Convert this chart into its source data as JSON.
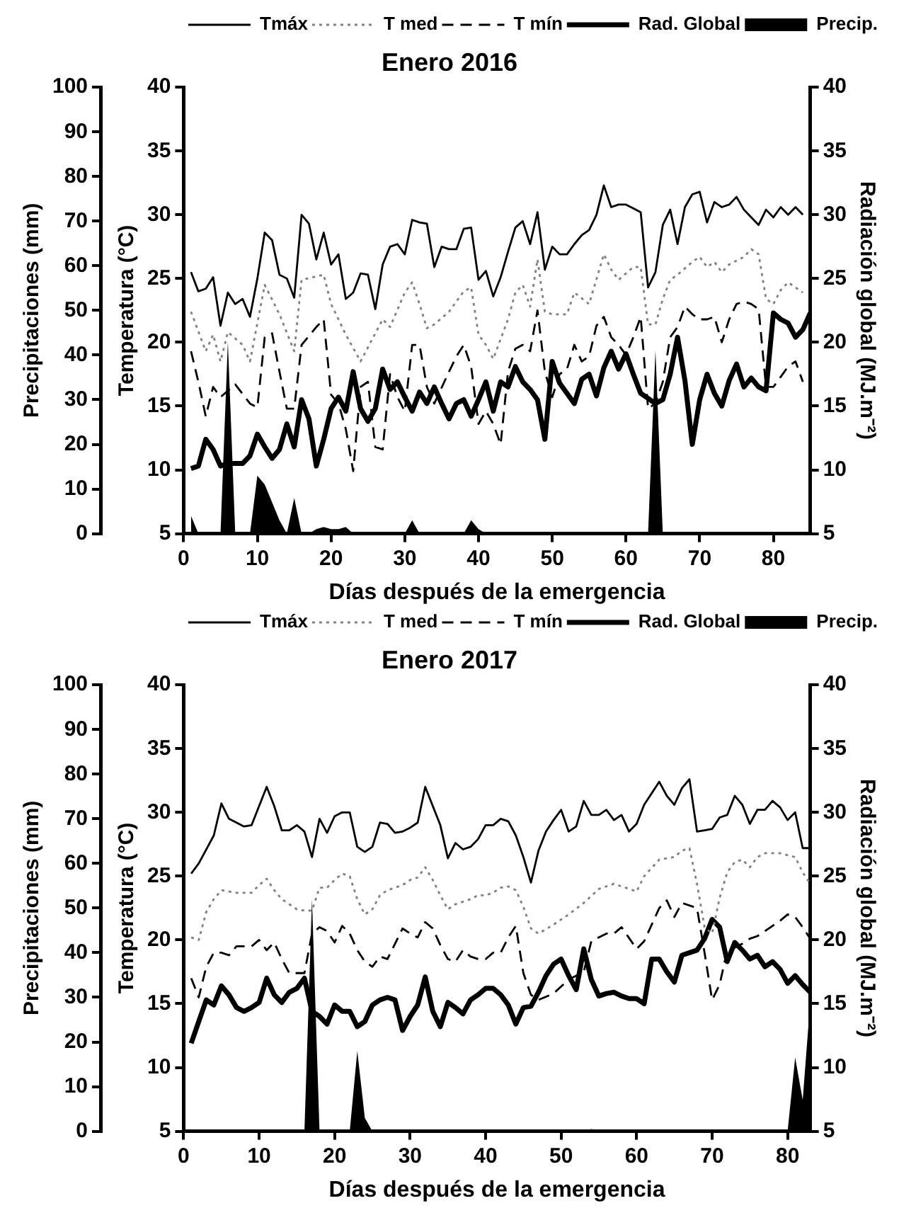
{
  "chart_data": [
    {
      "type": "line",
      "title": "Enero 2016",
      "xlabel": "Días después de la emergencia",
      "ylabel": "Precipitaciones (mm)",
      "y3label": "Temperatura (°C)",
      "y2label": "Radiación global (MJ.m⁻²)",
      "xlim": [
        0,
        85
      ],
      "xticks": [
        0,
        10,
        20,
        30,
        40,
        50,
        60,
        70,
        80
      ],
      "ylim": [
        0,
        100
      ],
      "yticks": [
        0,
        10,
        20,
        30,
        40,
        50,
        60,
        70,
        80,
        90,
        100
      ],
      "y3lim": [
        5,
        40
      ],
      "y3ticks": [
        5,
        10,
        15,
        20,
        25,
        30,
        35,
        40
      ],
      "y2lim": [
        5,
        40
      ],
      "y2ticks": [
        5,
        10,
        15,
        20,
        25,
        30,
        35,
        40
      ],
      "grid": false,
      "legend": "top right",
      "marker": "none",
      "series": [
        {
          "name": "Tmáx",
          "color": "#000000",
          "line_style": "solid",
          "axis": "y3",
          "x": [
            1,
            2,
            3,
            4,
            5,
            6,
            7,
            8,
            9,
            10,
            11,
            12,
            13,
            14,
            15,
            16,
            17,
            18,
            19,
            20,
            21,
            22,
            23,
            24,
            25,
            26,
            27,
            28,
            29,
            30,
            31,
            32,
            33,
            34,
            35,
            36,
            37,
            38,
            39,
            40,
            41,
            42,
            43,
            44,
            45,
            46,
            47,
            48,
            49,
            50,
            51,
            52,
            53,
            54,
            55,
            56,
            57,
            58,
            59,
            60,
            61,
            62,
            63,
            64,
            65,
            66,
            67,
            68,
            69,
            70,
            71,
            72,
            73,
            74,
            75,
            76,
            77,
            78,
            79,
            80,
            81,
            82,
            83,
            84
          ],
          "values": [
            25.5,
            24,
            24.2,
            25.1,
            21.3,
            23.9,
            23,
            23.4,
            22,
            25,
            28.6,
            28,
            25.3,
            25,
            23.5,
            30,
            29.3,
            26.5,
            28.6,
            26.1,
            26.9,
            23.4,
            23.9,
            25.4,
            25.3,
            22.6,
            26.1,
            27.5,
            27.7,
            26.9,
            29.6,
            29.4,
            29.3,
            25.9,
            27.5,
            27.3,
            27.3,
            28.9,
            29,
            24.9,
            25.6,
            23.6,
            25.1,
            27.1,
            29,
            29.5,
            27.7,
            30.2,
            25.7,
            27.5,
            26.9,
            26.9,
            27.7,
            28.4,
            28.8,
            30,
            32.3,
            30.6,
            30.8,
            30.8,
            30.5,
            30.2,
            24.3,
            25.5,
            29.2,
            30.4,
            27.7,
            30.6,
            31.6,
            31.8,
            29.4,
            31,
            30.6,
            30.8,
            31.4,
            30.4,
            29.8,
            29.2,
            30.4,
            29.8,
            30.6,
            30,
            30.6,
            30
          ]
        },
        {
          "name": "T med",
          "color": "#808080",
          "line_style": "dotted",
          "axis": "y3",
          "x": [
            1,
            3,
            4,
            5,
            6,
            8,
            9,
            11,
            13,
            15,
            16,
            19,
            20,
            22,
            24,
            26,
            27,
            28,
            30,
            31,
            32,
            33,
            34,
            36,
            38,
            39,
            40,
            41,
            42,
            44,
            45,
            46,
            47,
            48,
            49,
            50,
            52,
            53,
            55,
            57,
            58,
            59,
            61,
            62,
            63,
            64,
            65,
            66,
            67,
            69,
            70,
            71,
            72,
            73,
            74,
            76,
            77,
            78,
            79,
            80,
            81,
            82,
            83,
            84
          ],
          "values": [
            22.4,
            19.3,
            20.6,
            18.5,
            20.8,
            19.8,
            18.5,
            24.5,
            22.2,
            19.3,
            24.9,
            25.3,
            23,
            20.6,
            18.5,
            20.7,
            21.8,
            21.2,
            23.9,
            24.7,
            23,
            21.1,
            21.4,
            22.4,
            24,
            24.3,
            20.6,
            19.8,
            18.7,
            21.8,
            23.9,
            24.5,
            22.8,
            26.5,
            22.4,
            22.2,
            22.2,
            23.9,
            23,
            26.9,
            25.7,
            24.9,
            25.9,
            25.9,
            21.4,
            21.4,
            23.4,
            24.9,
            25.3,
            26.3,
            26.7,
            25.9,
            26.3,
            25.5,
            26.1,
            26.7,
            27.3,
            26.9,
            23.4,
            23,
            24.1,
            24.7,
            24.3,
            23.9
          ]
        },
        {
          "name": "T mín",
          "color": "#000000",
          "line_style": "dashed",
          "axis": "y3",
          "x": [
            1,
            2,
            3,
            4,
            5,
            7,
            9,
            10,
            11,
            12,
            13,
            14,
            15,
            16,
            18,
            19,
            20,
            21,
            22,
            23,
            24,
            25,
            26,
            27,
            28,
            29,
            30,
            31,
            32,
            33,
            34,
            36,
            37,
            38,
            39,
            40,
            41,
            42,
            43,
            44,
            45,
            46,
            47,
            48,
            49,
            50,
            51,
            52,
            53,
            54,
            55,
            56,
            57,
            58,
            59,
            60,
            61,
            62,
            63,
            64,
            65,
            66,
            67,
            68,
            69,
            70,
            71,
            72,
            73,
            74,
            75,
            76,
            77,
            78,
            79,
            80,
            81,
            82,
            83,
            84
          ],
          "values": [
            19.3,
            16.9,
            14.2,
            16.5,
            15.7,
            16.7,
            15.2,
            14.9,
            20.4,
            20.7,
            17.7,
            14.8,
            14.8,
            19.8,
            21.2,
            21.8,
            15.9,
            15.2,
            13.2,
            9.9,
            16.5,
            16.9,
            11.8,
            11.6,
            17.5,
            15.7,
            14.6,
            19.8,
            19.8,
            16.5,
            15.2,
            17.7,
            18.9,
            19.8,
            18.1,
            13.6,
            14.6,
            13.6,
            12,
            17.7,
            19.5,
            19.8,
            19.3,
            22.5,
            17.7,
            15.7,
            17.5,
            17.9,
            19.8,
            18.5,
            18.9,
            21.3,
            22,
            20.4,
            19.8,
            19,
            20.4,
            22,
            14.8,
            15.2,
            16.9,
            20.4,
            21.2,
            22.8,
            22.2,
            21.8,
            21.8,
            22,
            20,
            21.8,
            23,
            23.2,
            23,
            22.6,
            16.5,
            16.5,
            17.3,
            18.1,
            18.5,
            16.9
          ]
        },
        {
          "name": "Rad. Global",
          "color": "#000000",
          "line_style": "solid",
          "axis": "y2",
          "x": [
            1,
            2,
            3,
            4,
            5,
            6,
            7,
            8,
            9,
            10,
            11,
            12,
            13,
            14,
            15,
            16,
            17,
            18,
            19,
            20,
            21,
            22,
            23,
            24,
            25,
            26,
            27,
            28,
            29,
            30,
            31,
            32,
            33,
            34,
            35,
            36,
            37,
            38,
            39,
            40,
            41,
            42,
            43,
            44,
            45,
            46,
            47,
            48,
            49,
            50,
            51,
            52,
            53,
            54,
            55,
            56,
            57,
            58,
            59,
            60,
            61,
            62,
            63,
            64,
            65,
            66,
            67,
            68,
            69,
            70,
            71,
            72,
            73,
            74,
            75,
            76,
            77,
            78,
            79,
            80,
            81,
            82,
            83,
            84,
            85
          ],
          "values": [
            10.1,
            10.3,
            12.4,
            11.6,
            10.3,
            10.5,
            10.5,
            10.5,
            11.1,
            12.8,
            11.8,
            10.9,
            11.6,
            13.6,
            11.8,
            15.5,
            14,
            10.3,
            12.4,
            14.8,
            15.7,
            14.6,
            17.7,
            14.8,
            13.8,
            14.8,
            17.9,
            16.3,
            16.9,
            15.7,
            14.6,
            16.1,
            15.2,
            16.5,
            15.2,
            14,
            15.2,
            15.5,
            14.2,
            15.5,
            16.9,
            14.6,
            16.9,
            16.5,
            18.1,
            16.9,
            16.3,
            15.5,
            12.4,
            18.5,
            16.8,
            16,
            15.2,
            17.1,
            17.5,
            15.8,
            18,
            19.3,
            17.9,
            19.1,
            17.5,
            16,
            15.6,
            15.2,
            15.5,
            17.5,
            20.4,
            17,
            12,
            15.5,
            17.5,
            16,
            15,
            17,
            18.3,
            16.5,
            17.2,
            16.5,
            16.2,
            22.3,
            21.8,
            21.5,
            20.4,
            21,
            22.3
          ]
        },
        {
          "name": "Precip.",
          "type": "area",
          "color": "#000000",
          "axis": "y",
          "x": [
            1,
            2,
            5,
            6,
            7,
            9,
            10,
            11,
            12,
            13,
            14,
            15,
            16,
            17,
            18,
            19,
            20,
            21,
            22,
            23,
            30,
            31,
            32,
            38,
            39,
            40,
            41,
            63,
            64,
            65,
            85
          ],
          "values": [
            4,
            0,
            0,
            43,
            0,
            0,
            13,
            11,
            7,
            3,
            0,
            8,
            0,
            0,
            1,
            1.5,
            1,
            1,
            1.5,
            0,
            0,
            3,
            0,
            0,
            3,
            1,
            0,
            0,
            41,
            0,
            0
          ]
        }
      ]
    },
    {
      "type": "line",
      "title": "Enero 2017",
      "xlabel": "Días después de la emergencia",
      "ylabel": "Precipitaciones (mm)",
      "y3label": "Temperatura (°C)",
      "y2label": "Radiación global (MJ.m⁻²)",
      "xlim": [
        0,
        83
      ],
      "xticks": [
        0,
        10,
        20,
        30,
        40,
        50,
        60,
        70,
        80
      ],
      "ylim": [
        0,
        100
      ],
      "yticks": [
        0,
        10,
        20,
        30,
        40,
        50,
        60,
        70,
        80,
        90,
        100
      ],
      "y3lim": [
        5,
        40
      ],
      "y3ticks": [
        5,
        10,
        15,
        20,
        25,
        30,
        35,
        40
      ],
      "y2lim": [
        5,
        40
      ],
      "y2ticks": [
        5,
        10,
        15,
        20,
        25,
        30,
        35,
        40
      ],
      "grid": false,
      "legend": "top right",
      "marker": "none",
      "series": [
        {
          "name": "Tmáx",
          "color": "#000000",
          "line_style": "solid",
          "axis": "y3",
          "x": [
            1,
            2,
            3,
            4,
            5,
            6,
            7,
            8,
            9,
            10,
            11,
            12,
            13,
            14,
            15,
            16,
            17,
            18,
            19,
            20,
            21,
            22,
            23,
            24,
            25,
            26,
            27,
            28,
            29,
            30,
            31,
            32,
            33,
            34,
            35,
            36,
            37,
            38,
            39,
            40,
            41,
            42,
            43,
            44,
            45,
            46,
            47,
            48,
            49,
            50,
            51,
            52,
            53,
            54,
            55,
            56,
            57,
            58,
            59,
            60,
            61,
            62,
            63,
            64,
            65,
            66,
            67,
            68,
            69,
            70,
            71,
            72,
            73,
            74,
            75,
            76,
            77,
            78,
            79,
            80,
            81,
            82,
            83
          ],
          "values": [
            25.2,
            26,
            27.1,
            28.2,
            30.7,
            29.5,
            29.2,
            28.9,
            29,
            30.5,
            32,
            30.5,
            28.6,
            28.6,
            29,
            28.5,
            26.5,
            29.5,
            28.4,
            29.7,
            30,
            30,
            27.3,
            26.9,
            27.3,
            29.2,
            29.1,
            28.4,
            28.5,
            28.8,
            29.2,
            32,
            30.5,
            29,
            26.4,
            27.6,
            27.1,
            27.3,
            27.9,
            29,
            29,
            29.5,
            29.3,
            28.2,
            26.5,
            24.5,
            27,
            28.5,
            29.4,
            30.2,
            28.5,
            28.9,
            30.9,
            29.8,
            29.8,
            30.2,
            29.4,
            29.8,
            28.5,
            29.1,
            30.6,
            31.5,
            32.4,
            31.3,
            30.6,
            31.9,
            32.6,
            28.5,
            28.6,
            28.7,
            29.6,
            29.8,
            31.3,
            30.6,
            29.1,
            30.2,
            30.2,
            30.9,
            30.4,
            29.4,
            30,
            27.2,
            27.2
          ]
        },
        {
          "name": "T med",
          "color": "#808080",
          "line_style": "dotted",
          "axis": "y3",
          "x": [
            1,
            2,
            3,
            4,
            5,
            7,
            9,
            10,
            11,
            12,
            13,
            14,
            15,
            16,
            17,
            18,
            19,
            20,
            21,
            22,
            23,
            24,
            25,
            26,
            27,
            28,
            29,
            30,
            31,
            32,
            33,
            34,
            35,
            36,
            37,
            38,
            39,
            40,
            41,
            42,
            43,
            44,
            45,
            46,
            47,
            49,
            51,
            53,
            55,
            57,
            59,
            60,
            61,
            63,
            65,
            66,
            67,
            68,
            69,
            70,
            71,
            72,
            73,
            74,
            75,
            76,
            77,
            79,
            81,
            82,
            83
          ],
          "values": [
            20.2,
            20,
            22.2,
            23.2,
            23.9,
            23.7,
            23.7,
            24.3,
            24.8,
            23.9,
            23.2,
            22.8,
            22.4,
            22.3,
            22.3,
            24.1,
            24.1,
            24.7,
            25.2,
            25,
            23.2,
            22,
            22.4,
            23.5,
            23.9,
            24.1,
            24.3,
            24.7,
            24.9,
            25.7,
            24.7,
            23.5,
            22.4,
            22.8,
            23,
            23.2,
            23.5,
            23.5,
            23.7,
            24.1,
            24.2,
            23.9,
            22.6,
            20.9,
            20.5,
            21.2,
            22,
            22.9,
            24,
            24.4,
            24,
            23.8,
            25,
            26.3,
            26.5,
            27,
            27.2,
            24.4,
            21,
            20.5,
            23.3,
            25.3,
            26.1,
            26.3,
            25.7,
            26.5,
            26.8,
            26.8,
            26.5,
            25.3,
            24.4
          ]
        },
        {
          "name": "T mín",
          "color": "#000000",
          "line_style": "dashed",
          "axis": "y3",
          "x": [
            1,
            2,
            3,
            4,
            5,
            6,
            7,
            8,
            9,
            10,
            11,
            12,
            13,
            14,
            15,
            16,
            17,
            18,
            19,
            20,
            21,
            22,
            23,
            24,
            25,
            26,
            27,
            29,
            30,
            31,
            32,
            33,
            34,
            35,
            36,
            37,
            38,
            39,
            40,
            41,
            42,
            43,
            44,
            45,
            46,
            47,
            49,
            51,
            53,
            54,
            56,
            57,
            58,
            60,
            61,
            63,
            64,
            65,
            66,
            68,
            69,
            70,
            71,
            72,
            73,
            74,
            75,
            76,
            77,
            78,
            79,
            80,
            81,
            82,
            83
          ],
          "values": [
            17,
            15.5,
            17.9,
            19,
            19,
            18.8,
            19.5,
            19.5,
            19.5,
            20,
            19.2,
            19.8,
            18.5,
            17.4,
            17.4,
            17.4,
            20.5,
            21,
            20.7,
            19.8,
            21.1,
            20.5,
            19.2,
            18.3,
            17.9,
            18.7,
            18.5,
            20.9,
            20.5,
            20.2,
            21.4,
            20.9,
            19.6,
            18.5,
            18.3,
            19.2,
            18.7,
            18.5,
            18.5,
            19,
            19,
            20.2,
            21.1,
            17.4,
            15.7,
            15.3,
            15.8,
            16.9,
            17.5,
            19.9,
            20.5,
            20.5,
            21,
            19.3,
            19.9,
            22.5,
            23.1,
            21.8,
            22.9,
            22.5,
            19,
            15.3,
            16.5,
            19.2,
            19.4,
            19.7,
            20.1,
            20.3,
            20.7,
            21.1,
            21.5,
            22,
            21.8,
            21,
            20.1
          ]
        },
        {
          "name": "Rad. Global",
          "color": "#000000",
          "line_style": "solid",
          "axis": "y2",
          "x": [
            1,
            2,
            3,
            4,
            5,
            6,
            7,
            8,
            9,
            10,
            11,
            12,
            13,
            14,
            15,
            16,
            17,
            18,
            19,
            20,
            21,
            22,
            23,
            24,
            25,
            26,
            27,
            28,
            29,
            30,
            31,
            32,
            33,
            34,
            35,
            36,
            37,
            38,
            39,
            40,
            41,
            42,
            43,
            44,
            45,
            46,
            47,
            48,
            49,
            50,
            51,
            52,
            53,
            54,
            55,
            56,
            57,
            58,
            59,
            60,
            61,
            62,
            63,
            64,
            65,
            66,
            68,
            69,
            70,
            71,
            72,
            73,
            74,
            75,
            76,
            77,
            78,
            79,
            80,
            81,
            82,
            83
          ],
          "values": [
            11.9,
            13.6,
            15.3,
            14.9,
            16.4,
            15.7,
            14.7,
            14.4,
            14.7,
            15.1,
            17,
            15.7,
            15.1,
            15.9,
            16.2,
            17,
            14.4,
            14,
            13.4,
            14.9,
            14.4,
            14.4,
            13.2,
            13.6,
            14.9,
            15.3,
            15.5,
            15.3,
            12.9,
            14,
            14.9,
            17.1,
            14.4,
            13.2,
            15.1,
            14.7,
            14.2,
            15.3,
            15.7,
            16.2,
            16.2,
            15.7,
            14.9,
            13.4,
            14.7,
            14.8,
            15.9,
            17.2,
            18.1,
            18.5,
            17.2,
            16.1,
            19.3,
            16.9,
            15.6,
            15.8,
            15.9,
            15.6,
            15.4,
            15.4,
            15,
            18.5,
            18.5,
            17.5,
            16.7,
            18.8,
            19.2,
            20.1,
            21.6,
            21,
            18.3,
            19.8,
            19.2,
            18.5,
            18.8,
            17.9,
            18.3,
            17.7,
            16.6,
            17.2,
            16.5,
            15.9
          ]
        },
        {
          "name": "Precip.",
          "type": "area",
          "color": "#000000",
          "axis": "y",
          "x": [
            1,
            16,
            17,
            18,
            22,
            23,
            24,
            25,
            53,
            54,
            55,
            80,
            81,
            82,
            83
          ],
          "values": [
            0,
            0,
            52,
            0,
            0,
            18,
            3,
            0,
            0,
            0.5,
            0,
            0,
            16.5,
            7,
            29
          ]
        }
      ]
    }
  ]
}
